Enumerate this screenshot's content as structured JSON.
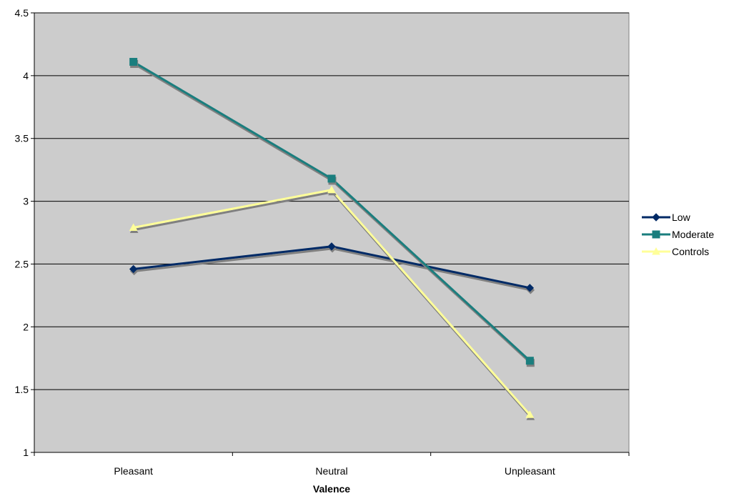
{
  "chart_data": {
    "type": "line",
    "title": "",
    "xlabel": "Valence",
    "ylabel": "",
    "categories": [
      "Pleasant",
      "Neutral",
      "Unpleasant"
    ],
    "ylim": [
      1,
      4.5
    ],
    "yticks": [
      1,
      1.5,
      2,
      2.5,
      3,
      3.5,
      4,
      4.5
    ],
    "ytick_labels": [
      "1",
      "1.5",
      "2",
      "2.5",
      "3",
      "3.5",
      "4",
      "4.5"
    ],
    "grid": true,
    "legend_position": "right",
    "plot_background": "#cccccc",
    "series": [
      {
        "name": "Low",
        "values": [
          2.46,
          2.64,
          2.31
        ],
        "color": "#002a66",
        "marker": "diamond"
      },
      {
        "name": "Moderate",
        "values": [
          4.11,
          3.18,
          1.73
        ],
        "color": "#1a7e7e",
        "marker": "square"
      },
      {
        "name": "Controls",
        "values": [
          2.79,
          3.09,
          1.3
        ],
        "color": "#ffff99",
        "marker": "triangle"
      }
    ]
  }
}
